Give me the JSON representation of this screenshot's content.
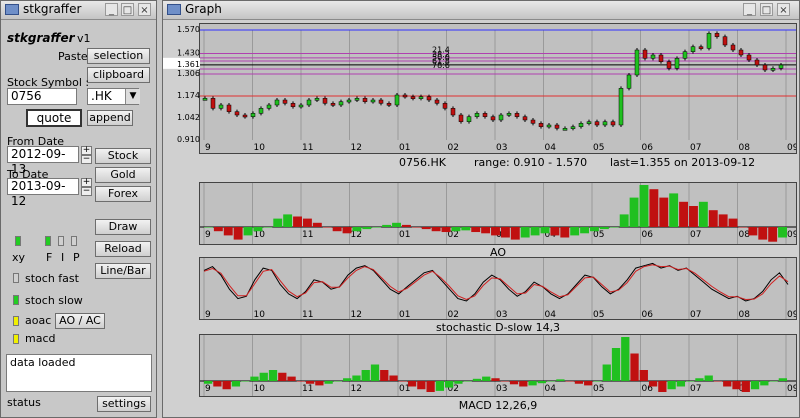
{
  "left_window": {
    "title": "stkgraffer",
    "app_name": "stkgraffer",
    "version": "v1",
    "paste_label": "Paste",
    "selection_button": "selection",
    "clipboard_button": "clipboard",
    "stock_symbol_label": "Stock Symbol :",
    "symbol_value": "0756",
    "exchange_value": ".HK",
    "quote_button": "quote",
    "append_button": "append",
    "from_date_label": "From Date",
    "from_date_value": "2012-09-13",
    "to_date_label": "To Date",
    "to_date_value": "2013-09-12",
    "stock_button": "Stock",
    "gold_button": "Gold",
    "forex_button": "Forex",
    "draw_button": "Draw",
    "reload_button": "Reload",
    "linebar_button": "Line/Bar",
    "xy_label": "xy",
    "f_label": "F",
    "i_label": "I",
    "p_label": "P",
    "stoch_fast_label": "stoch fast",
    "stoch_slow_label": "stoch slow",
    "aoac_label": "aoac",
    "aoac_button": "AO / AC",
    "macd_label": "macd",
    "status_text": "data loaded",
    "status_label": "status",
    "settings_button": "settings",
    "colors": {
      "led_green": "#22cc22",
      "led_yellow": "#f0f000",
      "led_grey": "#d0d0d0"
    }
  },
  "graph_window": {
    "title": "Graph",
    "price_panel_caption": {
      "symbol": "0756.HK",
      "range": "range: 0.910 - 1.570",
      "last": "last=1.355 on 2013-09-12"
    },
    "ao_caption": "AO",
    "stoch_caption": "stochastic D-slow 14,3",
    "macd_caption": "MACD 12,26,9",
    "month_labels": [
      "9",
      "10",
      "11",
      "12",
      "01",
      "02",
      "03",
      "04",
      "05",
      "06",
      "07",
      "08",
      "09"
    ],
    "fib_labels": [
      "21.4",
      "38.2",
      "50.0",
      "61.8",
      "78.6"
    ],
    "price_axis_labels": [
      "1.570",
      "1.430",
      "1.361",
      "1.306",
      "1.174",
      "1.042",
      "0.910"
    ]
  },
  "chart_data": [
    {
      "type": "bar",
      "title": "0756.HK",
      "ylim": [
        0.91,
        1.57
      ],
      "x_labels": [
        "9",
        "10",
        "11",
        "12",
        "01",
        "02",
        "03",
        "04",
        "05",
        "06",
        "07",
        "08",
        "09"
      ],
      "fibonacci_levels": [
        {
          "label": "21.4",
          "value": 1.429
        },
        {
          "label": "38.2",
          "value": 1.403
        },
        {
          "label": "50.0",
          "value": 1.384
        },
        {
          "label": "61.8",
          "value": 1.361
        },
        {
          "label": "78.6",
          "value": 1.336
        }
      ],
      "reference_levels": [
        1.57,
        1.43,
        1.361,
        1.306,
        1.174,
        1.042,
        0.91
      ],
      "close_series": [
        1.16,
        1.1,
        1.12,
        1.08,
        1.06,
        1.05,
        1.07,
        1.1,
        1.12,
        1.15,
        1.13,
        1.11,
        1.12,
        1.15,
        1.16,
        1.13,
        1.12,
        1.14,
        1.15,
        1.16,
        1.14,
        1.15,
        1.13,
        1.12,
        1.18,
        1.17,
        1.16,
        1.17,
        1.15,
        1.13,
        1.1,
        1.06,
        1.02,
        1.05,
        1.07,
        1.05,
        1.03,
        1.06,
        1.07,
        1.05,
        1.03,
        1.01,
        0.99,
        1.0,
        0.98,
        0.98,
        0.99,
        1.01,
        1.02,
        1.0,
        1.02,
        1.0,
        1.22,
        1.3,
        1.45,
        1.4,
        1.42,
        1.38,
        1.34,
        1.4,
        1.44,
        1.47,
        1.46,
        1.55,
        1.53,
        1.48,
        1.45,
        1.42,
        1.39,
        1.36,
        1.33,
        1.34,
        1.36
      ]
    },
    {
      "type": "bar",
      "title": "AO",
      "values": [
        0.0,
        -0.01,
        -0.02,
        -0.03,
        -0.02,
        -0.01,
        0.0,
        0.02,
        0.03,
        0.025,
        0.02,
        0.01,
        0.0,
        -0.01,
        -0.015,
        -0.01,
        -0.005,
        0.0,
        0.005,
        0.01,
        0.005,
        0.0,
        -0.005,
        -0.01,
        -0.012,
        -0.01,
        -0.008,
        -0.012,
        -0.015,
        -0.02,
        -0.025,
        -0.03,
        -0.025,
        -0.02,
        -0.015,
        -0.02,
        -0.025,
        -0.02,
        -0.015,
        -0.01,
        -0.005,
        0.0,
        0.03,
        0.07,
        0.1,
        0.09,
        0.07,
        0.08,
        0.06,
        0.05,
        0.06,
        0.04,
        0.03,
        0.02,
        0.0,
        -0.02,
        -0.03,
        -0.035,
        -0.025
      ]
    },
    {
      "type": "line",
      "title": "stochastic D-slow 14,3",
      "ylim": [
        0,
        100
      ],
      "series": [
        {
          "values": [
            80,
            88,
            70,
            40,
            20,
            25,
            60,
            85,
            80,
            50,
            30,
            20,
            35,
            60,
            55,
            40,
            45,
            70,
            85,
            90,
            80,
            60,
            40,
            30,
            45,
            60,
            75,
            80,
            60,
            40,
            20,
            15,
            30,
            55,
            70,
            60,
            40,
            25,
            35,
            55,
            45,
            30,
            20,
            30,
            50,
            70,
            65,
            45,
            30,
            40,
            60,
            85,
            90,
            95,
            85,
            90,
            80,
            85,
            70,
            55,
            40,
            30,
            20,
            25,
            15,
            20,
            35,
            60,
            75,
            50
          ]
        },
        {
          "values": [
            78,
            84,
            74,
            48,
            26,
            26,
            52,
            78,
            82,
            58,
            36,
            24,
            32,
            54,
            56,
            44,
            44,
            64,
            80,
            88,
            82,
            64,
            46,
            34,
            42,
            56,
            70,
            78,
            64,
            46,
            26,
            18,
            26,
            48,
            64,
            62,
            46,
            30,
            32,
            50,
            46,
            34,
            24,
            28,
            46,
            64,
            66,
            50,
            34,
            38,
            54,
            78,
            88,
            92,
            88,
            89,
            82,
            84,
            74,
            60,
            46,
            34,
            24,
            24,
            18,
            19,
            30,
            52,
            68,
            56
          ]
        }
      ]
    },
    {
      "type": "bar",
      "title": "MACD 12,26,9",
      "values": [
        -0.005,
        -0.01,
        -0.015,
        -0.01,
        0.0,
        0.008,
        0.015,
        0.02,
        0.015,
        0.008,
        0.0,
        -0.005,
        -0.008,
        -0.005,
        0.0,
        0.005,
        0.01,
        0.02,
        0.03,
        0.02,
        0.01,
        0.0,
        -0.01,
        -0.015,
        -0.02,
        -0.018,
        -0.012,
        -0.005,
        0.0,
        0.004,
        0.008,
        0.005,
        0.0,
        -0.006,
        -0.01,
        -0.008,
        -0.004,
        0.0,
        0.003,
        0.0,
        -0.005,
        -0.008,
        0.0,
        0.03,
        0.06,
        0.08,
        0.05,
        0.02,
        -0.01,
        -0.02,
        -0.015,
        -0.01,
        0.0,
        0.005,
        0.01,
        0.0,
        -0.01,
        -0.015,
        -0.02,
        -0.015,
        -0.008,
        0.0,
        0.005
      ]
    }
  ]
}
